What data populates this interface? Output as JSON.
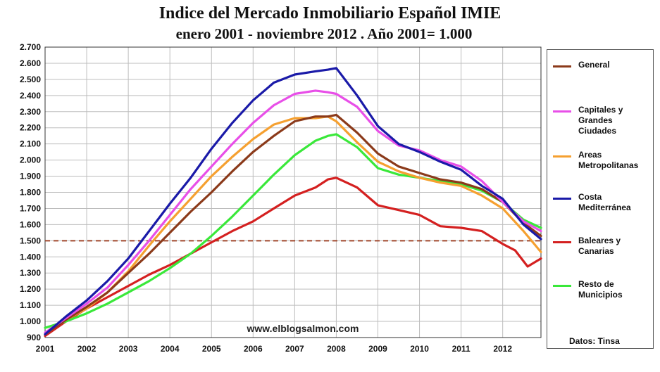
{
  "chart_data": {
    "type": "line",
    "title": "Indice del Mercado Inmobiliario Español  IMIE",
    "subtitle": "enero 2001 - noviembre 2012 .  Año 2001= 1.000",
    "xlabel": "",
    "ylabel": "",
    "xlim": [
      2001,
      2012.92
    ],
    "ylim": [
      900,
      2700
    ],
    "x_ticks": [
      "2001",
      "2002",
      "2003",
      "2004",
      "2005",
      "2006",
      "2007",
      "2008",
      "2009",
      "2010",
      "2011",
      "2012"
    ],
    "y_ticks": [
      "900",
      "1.000",
      "1.100",
      "1.200",
      "1.300",
      "1.400",
      "1.500",
      "1.600",
      "1.700",
      "1.800",
      "1.900",
      "2.000",
      "2.100",
      "2.200",
      "2.300",
      "2.400",
      "2.500",
      "2.600",
      "2.700"
    ],
    "reference_line": {
      "value": 1500,
      "style": "dashed",
      "color": "#a0462a"
    },
    "grid": true,
    "legend_position": "right",
    "series": [
      {
        "name": "General",
        "color": "#8b3a1a",
        "x": [
          2001,
          2001.5,
          2002,
          2002.5,
          2003,
          2003.5,
          2004,
          2004.5,
          2005,
          2005.5,
          2006,
          2006.5,
          2007,
          2007.5,
          2007.8,
          2008,
          2008.5,
          2009,
          2009.5,
          2010,
          2010.5,
          2011,
          2011.5,
          2012,
          2012.5,
          2012.92
        ],
        "values": [
          920,
          1010,
          1090,
          1180,
          1300,
          1420,
          1550,
          1680,
          1800,
          1930,
          2050,
          2150,
          2240,
          2270,
          2270,
          2280,
          2170,
          2040,
          1960,
          1920,
          1880,
          1860,
          1820,
          1740,
          1610,
          1530
        ]
      },
      {
        "name": "Capitales y Grandes Ciudades",
        "color": "#e84fe8",
        "x": [
          2001,
          2001.5,
          2002,
          2002.5,
          2003,
          2003.5,
          2004,
          2004.5,
          2005,
          2005.5,
          2006,
          2006.5,
          2007,
          2007.5,
          2007.8,
          2008,
          2008.5,
          2009,
          2009.5,
          2010,
          2010.5,
          2011,
          2011.5,
          2012,
          2012.5,
          2012.92
        ],
        "values": [
          930,
          1020,
          1110,
          1210,
          1350,
          1500,
          1660,
          1820,
          1960,
          2100,
          2230,
          2340,
          2410,
          2430,
          2420,
          2410,
          2330,
          2180,
          2090,
          2060,
          2000,
          1960,
          1870,
          1740,
          1620,
          1560
        ]
      },
      {
        "name": "Areas Metropolitanas",
        "color": "#f5a030",
        "x": [
          2001,
          2001.5,
          2002,
          2002.5,
          2003,
          2003.5,
          2004,
          2004.5,
          2005,
          2005.5,
          2006,
          2006.5,
          2007,
          2007.5,
          2007.8,
          2008,
          2008.5,
          2009,
          2009.5,
          2010,
          2010.5,
          2011,
          2011.5,
          2012,
          2012.5,
          2012.92
        ],
        "values": [
          920,
          1010,
          1080,
          1180,
          1310,
          1470,
          1620,
          1760,
          1900,
          2020,
          2130,
          2220,
          2260,
          2260,
          2270,
          2240,
          2110,
          1990,
          1930,
          1890,
          1860,
          1840,
          1780,
          1700,
          1560,
          1430
        ]
      },
      {
        "name": "Costa Mediterránea",
        "color": "#1a1aa8",
        "x": [
          2001,
          2001.5,
          2002,
          2002.5,
          2003,
          2003.5,
          2004,
          2004.5,
          2005,
          2005.5,
          2006,
          2006.5,
          2007,
          2007.5,
          2007.8,
          2008,
          2008.5,
          2009,
          2009.5,
          2010,
          2010.5,
          2011,
          2011.5,
          2012,
          2012.5,
          2012.92
        ],
        "values": [
          920,
          1030,
          1130,
          1250,
          1390,
          1560,
          1730,
          1890,
          2070,
          2230,
          2370,
          2480,
          2530,
          2550,
          2560,
          2570,
          2400,
          2210,
          2100,
          2050,
          1990,
          1940,
          1840,
          1760,
          1600,
          1510
        ]
      },
      {
        "name": "Baleares y Canarias",
        "color": "#d42020",
        "x": [
          2001,
          2001.5,
          2002,
          2002.5,
          2003,
          2003.5,
          2004,
          2004.5,
          2005,
          2005.5,
          2006,
          2006.5,
          2007,
          2007.5,
          2007.8,
          2008,
          2008.5,
          2009,
          2009.5,
          2010,
          2010.5,
          2011,
          2011.5,
          2012,
          2012.3,
          2012.6,
          2012.92
        ],
        "values": [
          910,
          1000,
          1080,
          1150,
          1220,
          1290,
          1350,
          1420,
          1490,
          1560,
          1620,
          1700,
          1780,
          1830,
          1880,
          1890,
          1830,
          1720,
          1690,
          1660,
          1590,
          1580,
          1560,
          1480,
          1440,
          1340,
          1390
        ]
      },
      {
        "name": "Resto de Municipios",
        "color": "#3ae83a",
        "x": [
          2001,
          2001.5,
          2002,
          2002.5,
          2003,
          2003.5,
          2004,
          2004.5,
          2005,
          2005.5,
          2006,
          2006.5,
          2007,
          2007.5,
          2007.8,
          2008,
          2008.5,
          2009,
          2009.5,
          2010,
          2010.5,
          2011,
          2011.5,
          2012,
          2012.5,
          2012.92
        ],
        "values": [
          960,
          1000,
          1050,
          1110,
          1180,
          1250,
          1330,
          1420,
          1530,
          1650,
          1780,
          1910,
          2030,
          2120,
          2150,
          2160,
          2080,
          1950,
          1910,
          1890,
          1870,
          1850,
          1810,
          1740,
          1630,
          1580
        ]
      }
    ]
  },
  "legend": [
    {
      "label": "General",
      "color": "#8b3a1a"
    },
    {
      "label": "Capitales y Grandes Ciudades",
      "lines": [
        "Capitales y",
        "Grandes",
        "Ciudades"
      ],
      "color": "#e84fe8"
    },
    {
      "label": "Areas Metropolitanas",
      "lines": [
        "Areas",
        "Metropolitanas"
      ],
      "color": "#f5a030"
    },
    {
      "label": "Costa Mediterránea",
      "lines": [
        "Costa",
        "Mediterránea"
      ],
      "color": "#1a1aa8"
    },
    {
      "label": "Baleares y Canarias",
      "lines": [
        "Baleares y",
        "Canarias"
      ],
      "color": "#d42020"
    },
    {
      "label": "Resto de Municipios",
      "lines": [
        "Resto de",
        "Municipios"
      ],
      "color": "#3ae83a"
    }
  ],
  "watermark": "www.elblogsalmon.com",
  "source": "Datos: Tinsa"
}
